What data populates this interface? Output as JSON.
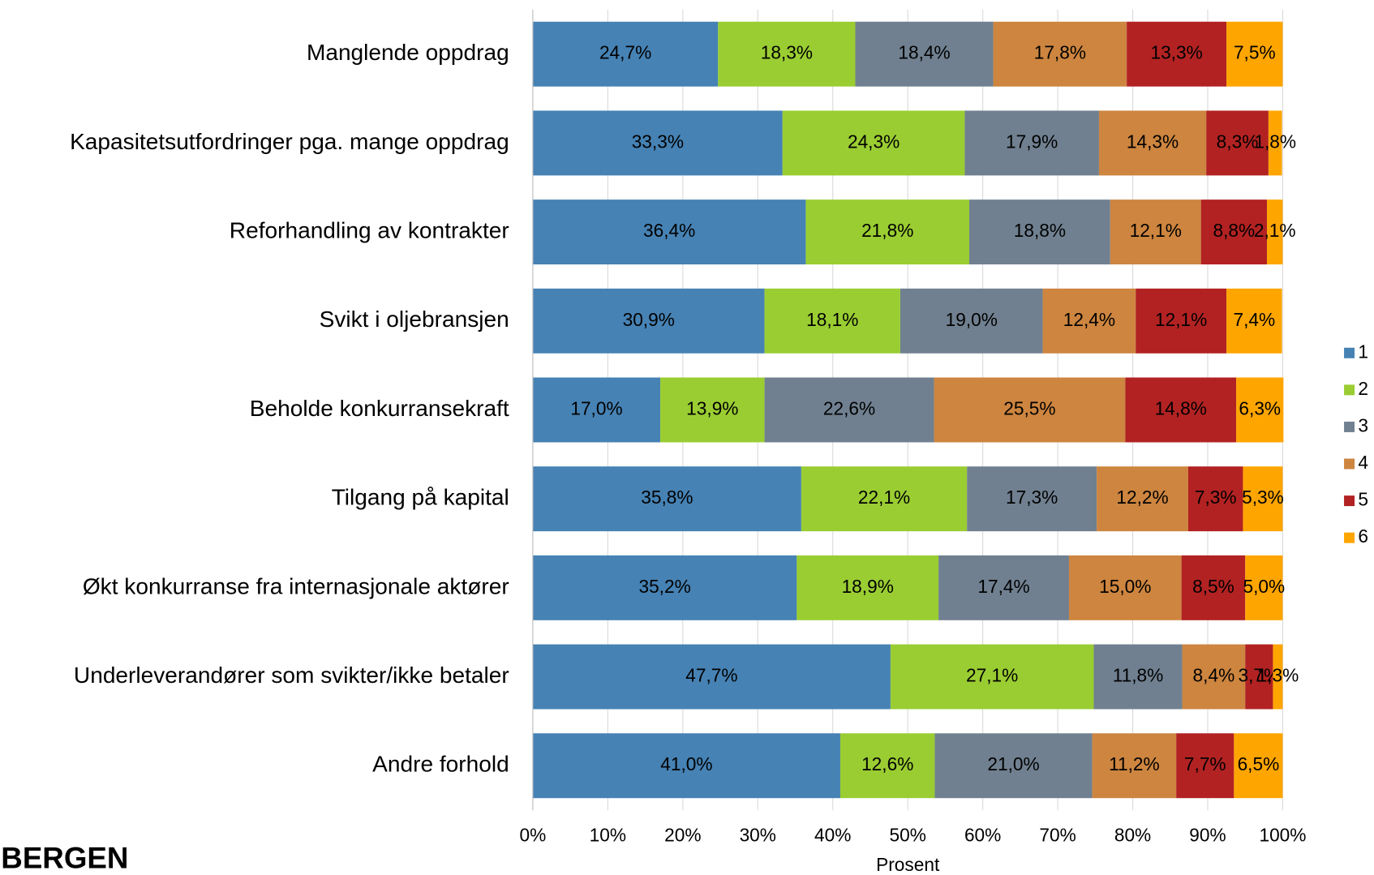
{
  "chart_data": {
    "type": "stacked-bar-horizontal",
    "categories": [
      "Manglende oppdrag",
      "Kapasitetsutfordringer pga. mange oppdrag",
      "Reforhandling av kontrakter",
      "Svikt i oljebransjen",
      "Beholde konkurransekraft",
      "Tilgang på kapital",
      "Økt konkurranse fra internasjonale aktører",
      "Underleverandører som svikter/ikke betaler",
      "Andre forhold"
    ],
    "series": [
      {
        "name": "1",
        "color": "#4682b4",
        "values": [
          24.7,
          33.3,
          36.4,
          30.9,
          17.0,
          35.8,
          35.2,
          47.7,
          41.0
        ],
        "value_labels": [
          "24,7%",
          "33,3%",
          "36,4%",
          "30,9%",
          "17,0%",
          "35,8%",
          "35,2%",
          "47,7%",
          "41,0%"
        ]
      },
      {
        "name": "2",
        "color": "#9acd32",
        "values": [
          18.3,
          24.3,
          21.8,
          18.1,
          13.9,
          22.1,
          18.9,
          27.1,
          12.6
        ],
        "value_labels": [
          "18,3%",
          "24,3%",
          "21,8%",
          "18,1%",
          "13,9%",
          "22,1%",
          "18,9%",
          "27,1%",
          "12,6%"
        ]
      },
      {
        "name": "3",
        "color": "#708090",
        "values": [
          18.4,
          17.9,
          18.8,
          19.0,
          22.6,
          17.3,
          17.4,
          11.8,
          21.0
        ],
        "value_labels": [
          "18,4%",
          "17,9%",
          "18,8%",
          "19,0%",
          "22,6%",
          "17,3%",
          "17,4%",
          "11,8%",
          "21,0%"
        ]
      },
      {
        "name": "4",
        "color": "#cd853f",
        "values": [
          17.8,
          14.3,
          12.1,
          12.4,
          25.5,
          12.2,
          15.0,
          8.4,
          11.2
        ],
        "value_labels": [
          "17,8%",
          "14,3%",
          "12,1%",
          "12,4%",
          "25,5%",
          "12,2%",
          "15,0%",
          "8,4%",
          "11,2%"
        ]
      },
      {
        "name": "5",
        "color": "#b22222",
        "values": [
          13.3,
          8.3,
          8.8,
          12.1,
          14.8,
          7.3,
          8.5,
          3.7,
          7.7
        ],
        "value_labels": [
          "13,3%",
          "8,3%",
          "8,8%",
          "12,1%",
          "14,8%",
          "7,3%",
          "8,5%",
          "3,7%",
          "7,7%"
        ]
      },
      {
        "name": "6",
        "color": "#ffa500",
        "values": [
          7.5,
          1.8,
          2.1,
          7.4,
          6.3,
          5.3,
          5.0,
          1.3,
          6.5
        ],
        "value_labels": [
          "7,5%",
          "1,8%",
          "2,1%",
          "7,4%",
          "6,3%",
          "5,3%",
          "5,0%",
          "1,3%",
          "6,5%"
        ]
      }
    ],
    "x_label": "Prosent",
    "xlim": [
      0,
      100
    ],
    "xticks": [
      {
        "value": 0,
        "label": "0%"
      },
      {
        "value": 10,
        "label": "10%"
      },
      {
        "value": 20,
        "label": "20%"
      },
      {
        "value": 30,
        "label": "30%"
      },
      {
        "value": 40,
        "label": "40%"
      },
      {
        "value": 50,
        "label": "50%"
      },
      {
        "value": 60,
        "label": "60%"
      },
      {
        "value": 70,
        "label": "70%"
      },
      {
        "value": 80,
        "label": "80%"
      },
      {
        "value": 90,
        "label": "90%"
      },
      {
        "value": 100,
        "label": "100%"
      }
    ],
    "grid": true,
    "legend": "right",
    "footer_logo": "BERGEN"
  }
}
